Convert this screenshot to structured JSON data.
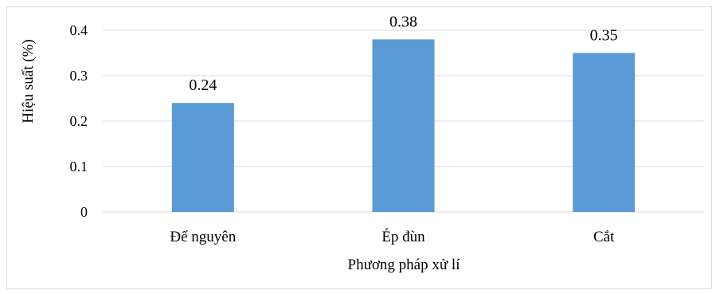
{
  "chart_data": {
    "type": "bar",
    "categories": [
      "Để nguyên",
      "Ép đùn",
      "Cắt"
    ],
    "values": [
      0.24,
      0.38,
      0.35
    ],
    "value_labels": [
      "0.24",
      "0.38",
      "0.35"
    ],
    "title": "",
    "xlabel": "Phương pháp xử lí",
    "ylabel": "Hiệu suất (%)",
    "ylim": [
      0,
      0.4
    ],
    "yticks": [
      0,
      0.1,
      0.2,
      0.3,
      0.4
    ],
    "ytick_labels": [
      "0",
      "0.1",
      "0.2",
      "0.3",
      "0.4"
    ],
    "grid": true,
    "legend": "none",
    "bar_color": "#5b9bd5",
    "grid_color": "#d9d9d9"
  }
}
